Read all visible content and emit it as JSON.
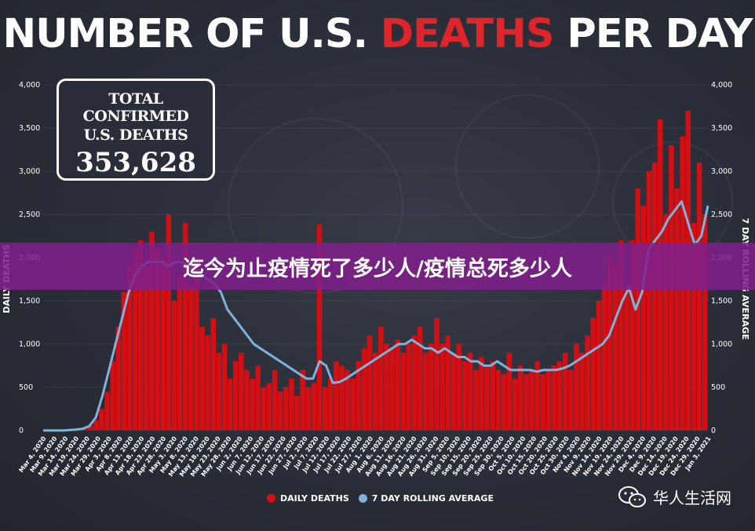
{
  "title": {
    "part1": "NUMBER OF U.S. ",
    "part2": "DEATHS",
    "part3": " PER DAY"
  },
  "total_box": {
    "line1": "TOTAL CONFIRMED",
    "line2": "U.S. DEATHS",
    "value": "353,628"
  },
  "banner": {
    "text": "迄今为止疫情死了多少人/疫情总死多少人"
  },
  "legend": {
    "daily": "DAILY DEATHS",
    "rolling": "7 DAY ROLLING AVERAGE"
  },
  "watermark": {
    "text": "华人生活网",
    "icon": "wechat-icon"
  },
  "colors": {
    "bars": "#d40f14",
    "line": "#7fb3dc",
    "title_accent": "#e0252a",
    "banner": "#801e8c"
  },
  "chart_data": {
    "type": "bar",
    "title": "NUMBER OF U.S. DEATHS PER DAY",
    "ylabel_left": "DAILY DEATHS",
    "ylabel_right": "7 DAY ROLLING AVERAGE",
    "ylim": [
      0,
      4000
    ],
    "y_ticks": [
      "0",
      "500",
      "1,000",
      "1,500",
      "2,000",
      "2,500",
      "3,000",
      "3,500",
      "4,000"
    ],
    "x_ticks": [
      "Mar 4, 2020",
      "Mar 9, 2020",
      "Mar 14, 2020",
      "Mar 19, 2020",
      "Mar 24, 2020",
      "Mar 29, 2020",
      "Apr 3, 2020",
      "Apr 8, 2020",
      "Apr 13, 2020",
      "Apr 18, 2020",
      "Apr 23, 2020",
      "Apr 28, 2020",
      "May 3, 2020",
      "May 8, 2020",
      "May 13, 2020",
      "May 18, 2020",
      "May 23, 2020",
      "May 28, 2020",
      "Jun 2, 2020",
      "Jun 7, 2020",
      "Jun 12, 2020",
      "Jun 17, 2020",
      "Jun 22, 2020",
      "Jun 27, 2020",
      "Jul 2, 2020",
      "Jul 7, 2020",
      "Jul 12, 2020",
      "Jul 17, 2020",
      "Jul 22, 2020",
      "Jul 27, 2020",
      "Aug 1, 2020",
      "Aug 6, 2020",
      "Aug 11, 2020",
      "Aug 16, 2020",
      "Aug 21, 2020",
      "Aug 26, 2020",
      "Aug 31, 2020",
      "Sep 5, 2020",
      "Sep 10, 2020",
      "Sep 15, 2020",
      "Sep 20, 2020",
      "Sep 25, 2020",
      "Sep 30, 2020",
      "Oct 5, 2020",
      "Oct 10, 2020",
      "Oct 15, 2020",
      "Oct 20, 2020",
      "Oct 25, 2020",
      "Oct 30, 2020",
      "Nov 4, 2020",
      "Nov 9, 2020",
      "Nov 14, 2020",
      "Nov 19, 2020",
      "Nov 24, 2020",
      "Nov 29, 2020",
      "Dec 4, 2020",
      "Dec 9, 2020",
      "Dec 14, 2020",
      "Dec 19, 2020",
      "Dec 24, 2020",
      "Dec 29, 2020",
      "Jan 3, 2021"
    ],
    "series": [
      {
        "name": "DAILY DEATHS",
        "type": "bar",
        "values": [
          5,
          6,
          8,
          10,
          12,
          15,
          20,
          30,
          60,
          120,
          250,
          450,
          800,
          1200,
          1600,
          1900,
          2100,
          2200,
          1900,
          2300,
          2100,
          2000,
          2500,
          1500,
          1800,
          2400,
          1700,
          2000,
          1200,
          1100,
          1300,
          900,
          1000,
          600,
          800,
          900,
          700,
          600,
          750,
          500,
          550,
          700,
          450,
          500,
          600,
          400,
          700,
          500,
          550,
          2380,
          500,
          600,
          800,
          750,
          700,
          600,
          800,
          950,
          1100,
          900,
          1200,
          1000,
          950,
          1050,
          900,
          1000,
          1100,
          1200,
          900,
          1000,
          1300,
          1000,
          1100,
          900,
          1000,
          800,
          900,
          700,
          850,
          750,
          800,
          700,
          650,
          900,
          600,
          750,
          650,
          700,
          800,
          650,
          700,
          750,
          800,
          900,
          700,
          1000,
          900,
          1100,
          1300,
          1500,
          1700,
          2000,
          1900,
          2200,
          1700,
          2200,
          2800,
          2600,
          3000,
          3100,
          3600,
          2500,
          3300,
          2800,
          3400,
          3700,
          2400,
          3100,
          2500
        ]
      },
      {
        "name": "7 DAY ROLLING AVERAGE",
        "type": "line",
        "values": [
          0,
          0,
          0,
          0,
          5,
          10,
          20,
          50,
          150,
          400,
          700,
          1000,
          1300,
          1600,
          1800,
          1900,
          1950,
          1950,
          1950,
          1900,
          1950,
          1950,
          1900,
          1850,
          1800,
          1750,
          1700,
          1600,
          1400,
          1300,
          1200,
          1100,
          1000,
          950,
          900,
          850,
          800,
          750,
          700,
          650,
          600,
          600,
          800,
          750,
          550,
          560,
          600,
          650,
          700,
          750,
          800,
          850,
          900,
          950,
          1000,
          1000,
          1050,
          1000,
          950,
          950,
          900,
          950,
          900,
          850,
          850,
          800,
          800,
          750,
          750,
          800,
          750,
          700,
          700,
          700,
          700,
          680,
          700,
          700,
          700,
          720,
          750,
          800,
          850,
          900,
          950,
          1000,
          1100,
          1300,
          1500,
          1650,
          1400,
          1600,
          2100,
          2200,
          2300,
          2450,
          2550,
          2650,
          2400,
          2150,
          2250,
          2600
        ]
      }
    ]
  }
}
